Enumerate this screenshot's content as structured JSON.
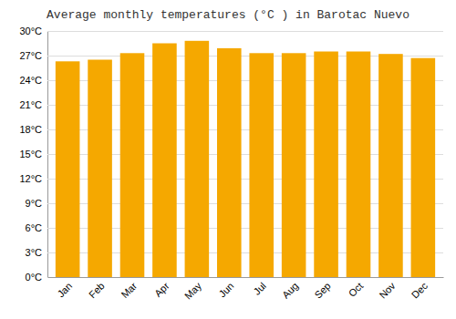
{
  "chart_data": {
    "type": "bar",
    "title": "Average monthly temperatures (°C ) in Barotac Nuevo",
    "categories": [
      "Jan",
      "Feb",
      "Mar",
      "Apr",
      "May",
      "Jun",
      "Jul",
      "Aug",
      "Sep",
      "Oct",
      "Nov",
      "Dec"
    ],
    "values": [
      26.3,
      26.5,
      27.3,
      28.5,
      28.8,
      27.9,
      27.3,
      27.3,
      27.5,
      27.5,
      27.2,
      26.7
    ],
    "color": "#F5A800",
    "ylim": [
      0,
      30
    ],
    "yticks": [
      {
        "value": 0,
        "label": "0°C"
      },
      {
        "value": 3,
        "label": "3°C"
      },
      {
        "value": 6,
        "label": "6°C"
      },
      {
        "value": 9,
        "label": "9°C"
      },
      {
        "value": 12,
        "label": "12°C"
      },
      {
        "value": 15,
        "label": "15°C"
      },
      {
        "value": 18,
        "label": "18°C"
      },
      {
        "value": 21,
        "label": "21°C"
      },
      {
        "value": 24,
        "label": "24°C"
      },
      {
        "value": 27,
        "label": "27°C"
      },
      {
        "value": 30,
        "label": "30°C"
      }
    ],
    "grid": true
  }
}
